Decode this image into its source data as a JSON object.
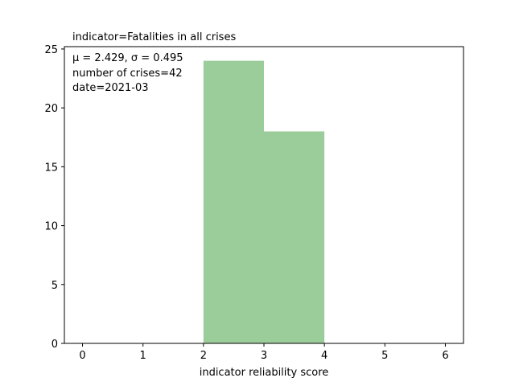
{
  "chart_data": {
    "type": "bar",
    "title": "indicator=Fatalities in all crises",
    "xlabel": "indicator reliability score",
    "ylabel": "",
    "bins": [
      [
        2,
        3
      ],
      [
        3,
        4
      ]
    ],
    "values": [
      24,
      18
    ],
    "xlim": [
      -0.3,
      6.3
    ],
    "ylim": [
      0,
      25.2
    ],
    "xticks": [
      0,
      1,
      2,
      3,
      4,
      5,
      6
    ],
    "yticks": [
      0,
      5,
      10,
      15,
      20,
      25
    ],
    "bar_color": "#9bcd9b",
    "grid": false,
    "annotations": {
      "stats": "μ = 2.429,  σ = 0.495",
      "count": "number of crises=42",
      "date": "date=2021-03"
    }
  }
}
